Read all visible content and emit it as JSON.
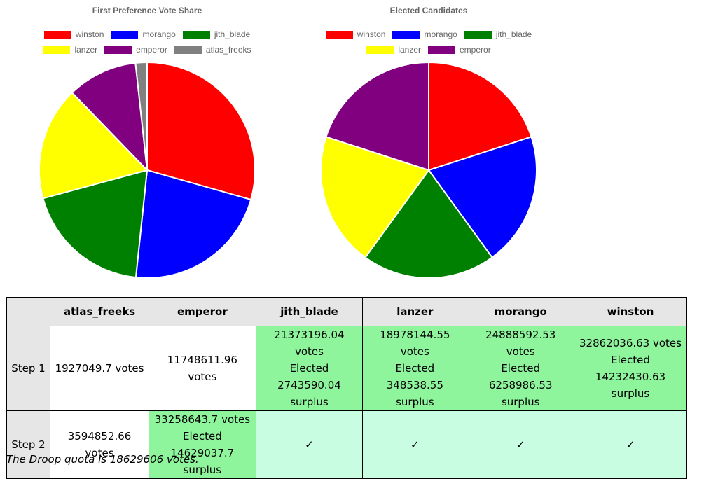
{
  "chart_data": [
    {
      "type": "pie",
      "title": "First Preference Vote Share",
      "categories": [
        "winston",
        "morango",
        "jith_blade",
        "lanzer",
        "emperor",
        "atlas_freeks"
      ],
      "values": [
        32862036.63,
        24888592.53,
        21373196.04,
        18978144.55,
        11748611.96,
        1927049.7
      ],
      "colors": [
        "#ff0000",
        "#0000ff",
        "#008000",
        "#ffff00",
        "#800080",
        "#808080"
      ],
      "legend": "top"
    },
    {
      "type": "pie",
      "title": "Elected Candidates",
      "categories": [
        "winston",
        "morango",
        "jith_blade",
        "lanzer",
        "emperor"
      ],
      "values": [
        1,
        1,
        1,
        1,
        1
      ],
      "colors": [
        "#ff0000",
        "#0000ff",
        "#008000",
        "#ffff00",
        "#800080"
      ],
      "legend": "top"
    }
  ],
  "table": {
    "columns": [
      "",
      "atlas_freeks",
      "emperor",
      "jith_blade",
      "lanzer",
      "morango",
      "winston"
    ],
    "rows": [
      {
        "label": "Step 1",
        "cells": [
          {
            "state": "plain",
            "lines": [
              "1927049.7 votes"
            ]
          },
          {
            "state": "plain",
            "lines": [
              "11748611.96 votes"
            ]
          },
          {
            "state": "elected",
            "lines": [
              "21373196.04 votes",
              "Elected",
              "2743590.04 surplus"
            ]
          },
          {
            "state": "elected",
            "lines": [
              "18978144.55 votes",
              "Elected",
              "348538.55 surplus"
            ]
          },
          {
            "state": "elected",
            "lines": [
              "24888592.53 votes",
              "Elected",
              "6258986.53 surplus"
            ]
          },
          {
            "state": "elected",
            "lines": [
              "32862036.63 votes",
              "Elected",
              "14232430.63 surplus"
            ]
          }
        ]
      },
      {
        "label": "Step 2",
        "cells": [
          {
            "state": "plain",
            "lines": [
              "3594852.66 votes"
            ]
          },
          {
            "state": "elected",
            "lines": [
              "33258643.7 votes",
              "Elected",
              "14629037.7 surplus"
            ]
          },
          {
            "state": "check",
            "lines": [
              "✓"
            ]
          },
          {
            "state": "check",
            "lines": [
              "✓"
            ]
          },
          {
            "state": "check",
            "lines": [
              "✓"
            ]
          },
          {
            "state": "check",
            "lines": [
              "✓"
            ]
          }
        ]
      }
    ]
  },
  "footnote": "The Droop quota is 18629606 votes."
}
